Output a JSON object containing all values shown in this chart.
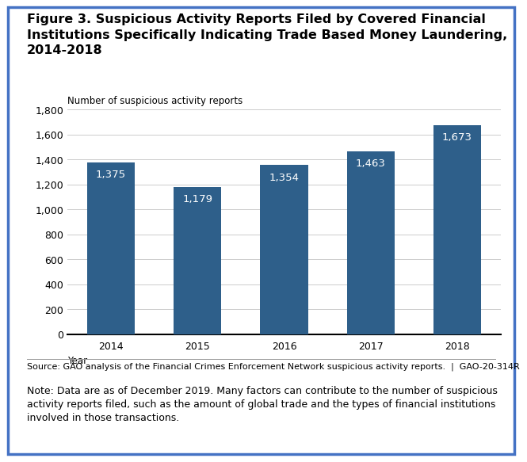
{
  "title_line1": "Figure 3. Suspicious Activity Reports Filed by Covered Financial",
  "title_line2": "Institutions Specifically Indicating Trade Based Money Laundering,",
  "title_line3": "2014-2018",
  "ylabel": "Number of suspicious activity reports",
  "xlabel": "Year",
  "categories": [
    "2014",
    "2015",
    "2016",
    "2017",
    "2018"
  ],
  "values": [
    1375,
    1179,
    1354,
    1463,
    1673
  ],
  "bar_color": "#2E5F8A",
  "ylim": [
    0,
    1800
  ],
  "yticks": [
    0,
    200,
    400,
    600,
    800,
    1000,
    1200,
    1400,
    1600,
    1800
  ],
  "label_color": "#ffffff",
  "label_fontsize": 9.5,
  "source_text": "Source: GAO analysis of the Financial Crimes Enforcement Network suspicious activity reports.  |  GAO-20-314R",
  "note_text": "Note: Data are as of December 2019. Many factors can contribute to the number of suspicious\nactivity reports filed, such as the amount of global trade and the types of financial institutions\ninvolved in those transactions.",
  "background_color": "#ffffff",
  "border_color": "#4472C4",
  "title_fontsize": 11.5,
  "axis_label_fontsize": 8.5,
  "tick_fontsize": 9,
  "source_fontsize": 8,
  "note_fontsize": 9
}
